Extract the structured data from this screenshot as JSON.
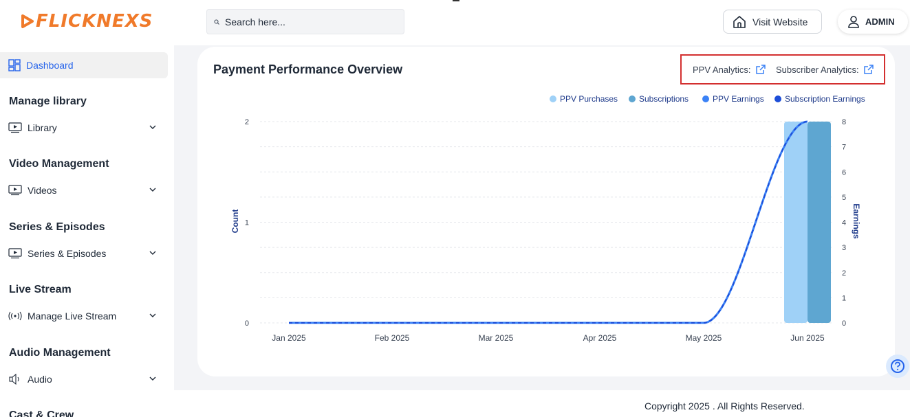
{
  "header": {
    "logo_text": "FLICKNEXS",
    "search_placeholder": "Search here...",
    "visit_label": "Visit Website",
    "admin_label": "ADMIN"
  },
  "sidebar": {
    "dashboard_label": "Dashboard",
    "sections": [
      {
        "title": "Manage library",
        "item": "Library"
      },
      {
        "title": "Video Management",
        "item": "Videos"
      },
      {
        "title": "Series & Episodes",
        "item": "Series & Episodes"
      },
      {
        "title": "Live Stream",
        "item": "Manage Live Stream"
      },
      {
        "title": "Audio Management",
        "item": "Audio"
      },
      {
        "title": "Cast & Crew",
        "item": ""
      }
    ]
  },
  "card": {
    "title": "Payment Performance Overview",
    "ppv_link": "PPV Analytics:",
    "subscriber_link": "Subscriber Analytics:"
  },
  "legend": {
    "ppv_purchases": "PPV Purchases",
    "subscriptions": "Subscriptions",
    "ppv_earnings": "PPV Earnings",
    "subscription_earnings": "Subscription Earnings"
  },
  "colors": {
    "ppv_purchases": "#9fd1f7",
    "subscriptions": "#5ea6d1",
    "ppv_earnings": "#3b82f6",
    "subscription_earnings": "#1d4ed8",
    "accent": "#2563eb",
    "logo": "#f07a2a",
    "highlight": "#d32f2f"
  },
  "chart_data": {
    "type": "bar",
    "categories": [
      "Jan 2025",
      "Feb 2025",
      "Mar 2025",
      "Apr 2025",
      "May 2025",
      "Jun 2025"
    ],
    "series": [
      {
        "name": "PPV Purchases",
        "type": "bar",
        "axis": "left",
        "values": [
          0,
          0,
          0,
          0,
          0,
          2
        ]
      },
      {
        "name": "Subscriptions",
        "type": "bar",
        "axis": "left",
        "values": [
          0,
          0,
          0,
          0,
          0,
          2
        ]
      },
      {
        "name": "PPV Earnings",
        "type": "line",
        "axis": "right",
        "values": [
          0,
          0,
          0,
          0,
          0,
          8
        ]
      },
      {
        "name": "Subscription Earnings",
        "type": "line",
        "axis": "right",
        "values": [
          0,
          0,
          0,
          0,
          0,
          8
        ]
      }
    ],
    "ylabel": "Count",
    "y2label": "Earnings",
    "ylim": [
      0,
      2
    ],
    "y2lim": [
      0,
      8
    ],
    "yticks": [
      "0",
      "1",
      "2"
    ],
    "y2ticks": [
      "0",
      "1",
      "2",
      "3",
      "4",
      "5",
      "6",
      "7",
      "8"
    ],
    "grid": true,
    "legend_position": "top-right"
  },
  "footer": {
    "copyright": "Copyright 2025 . All Rights Reserved."
  }
}
